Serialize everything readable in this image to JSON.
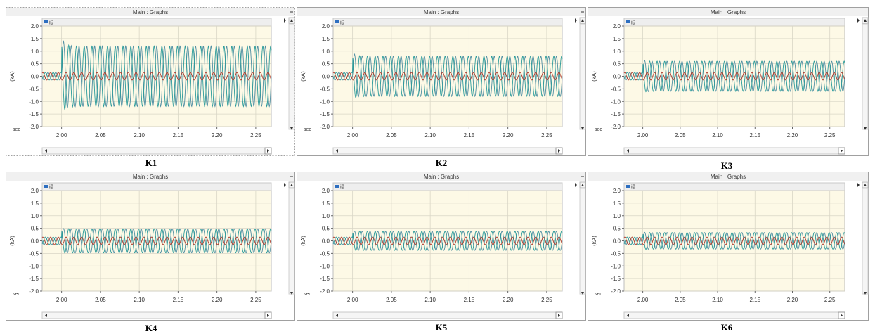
{
  "window_title": "Main : Graphs",
  "legend_label": "i9",
  "y_axis_label": "(kA)",
  "x_axis_label": "sec",
  "colors": {
    "plot_bg": "#fdf9e6",
    "grid": "#d9d6c6",
    "phase_a": "#4f8ea3",
    "phase_b": "#2a9a9a",
    "phase_c": "#b0392c",
    "frame": "#a0a0a0",
    "title_bar": "#f0f0f0"
  },
  "icons": [
    "legend-swatch-icon",
    "scroll-left-arrow-icon",
    "scroll-right-arrow-icon",
    "scroll-up-arrow-icon",
    "scroll-down-arrow-icon",
    "minimize-icon"
  ],
  "chart_data": [
    {
      "type": "line",
      "name": "K1",
      "xlim": [
        1.975,
        2.27
      ],
      "ylim": [
        -2.0,
        2.0
      ],
      "x_ticks": [
        "2.00",
        "2.05",
        "2.10",
        "2.15",
        "2.20",
        "2.25"
      ],
      "y_ticks": [
        "2.0",
        "1.5",
        "1.0",
        "0.5",
        "0.0",
        "-0.5",
        "-1.0",
        "-1.5",
        "-2.0"
      ],
      "fault_time": 2.0,
      "frequency_hz": 100,
      "pre_fault_amplitude": 0.15,
      "post_fault_amplitude": 1.2,
      "fault_peak": 1.55,
      "series_names": [
        "i9"
      ]
    },
    {
      "type": "line",
      "name": "K2",
      "xlim": [
        1.975,
        2.27
      ],
      "ylim": [
        -2.0,
        2.0
      ],
      "x_ticks": [
        "2.00",
        "2.05",
        "2.10",
        "2.15",
        "2.20",
        "2.25"
      ],
      "y_ticks": [
        "2.0",
        "1.5",
        "1.0",
        "0.5",
        "0.0",
        "-0.5",
        "-1.0",
        "-1.5",
        "-2.0"
      ],
      "fault_time": 2.0,
      "frequency_hz": 100,
      "pre_fault_amplitude": 0.15,
      "post_fault_amplitude": 0.8,
      "fault_peak": 0.95,
      "series_names": [
        "i9"
      ]
    },
    {
      "type": "line",
      "name": "K3",
      "xlim": [
        1.975,
        2.27
      ],
      "ylim": [
        -2.0,
        2.0
      ],
      "x_ticks": [
        "2.00",
        "2.05",
        "2.10",
        "2.15",
        "2.20",
        "2.25"
      ],
      "y_ticks": [
        "2.0",
        "1.5",
        "1.0",
        "0.5",
        "0.0",
        "-0.5",
        "-1.0",
        "-1.5",
        "-2.0"
      ],
      "fault_time": 2.0,
      "frequency_hz": 100,
      "pre_fault_amplitude": 0.15,
      "post_fault_amplitude": 0.6,
      "fault_peak": 0.65,
      "series_names": [
        "i9"
      ]
    },
    {
      "type": "line",
      "name": "K4",
      "xlim": [
        1.975,
        2.27
      ],
      "ylim": [
        -2.0,
        2.0
      ],
      "x_ticks": [
        "2.00",
        "2.05",
        "2.10",
        "2.15",
        "2.20",
        "2.25"
      ],
      "y_ticks": [
        "2.0",
        "1.5",
        "1.0",
        "0.5",
        "0.0",
        "-0.5",
        "-1.0",
        "-1.5",
        "-2.0"
      ],
      "fault_time": 2.0,
      "frequency_hz": 100,
      "pre_fault_amplitude": 0.15,
      "post_fault_amplitude": 0.48,
      "fault_peak": 0.5,
      "series_names": [
        "i9"
      ]
    },
    {
      "type": "line",
      "name": "K5",
      "xlim": [
        1.975,
        2.27
      ],
      "ylim": [
        -2.0,
        2.0
      ],
      "x_ticks": [
        "2.00",
        "2.05",
        "2.10",
        "2.15",
        "2.20",
        "2.25"
      ],
      "y_ticks": [
        "2.0",
        "1.5",
        "1.0",
        "0.5",
        "0.0",
        "-0.5",
        "-1.0",
        "-1.5",
        "-2.0"
      ],
      "fault_time": 2.0,
      "frequency_hz": 100,
      "pre_fault_amplitude": 0.15,
      "post_fault_amplitude": 0.38,
      "fault_peak": 0.4,
      "series_names": [
        "i9"
      ]
    },
    {
      "type": "line",
      "name": "K6",
      "xlim": [
        1.975,
        2.27
      ],
      "ylim": [
        -2.0,
        2.0
      ],
      "x_ticks": [
        "2.00",
        "2.05",
        "2.10",
        "2.15",
        "2.20",
        "2.25"
      ],
      "y_ticks": [
        "2.0",
        "1.5",
        "1.0",
        "0.5",
        "0.0",
        "-0.5",
        "-1.0",
        "-1.5",
        "-2.0"
      ],
      "fault_time": 2.0,
      "frequency_hz": 100,
      "pre_fault_amplitude": 0.15,
      "post_fault_amplitude": 0.33,
      "fault_peak": 0.35,
      "series_names": [
        "i9"
      ]
    }
  ]
}
